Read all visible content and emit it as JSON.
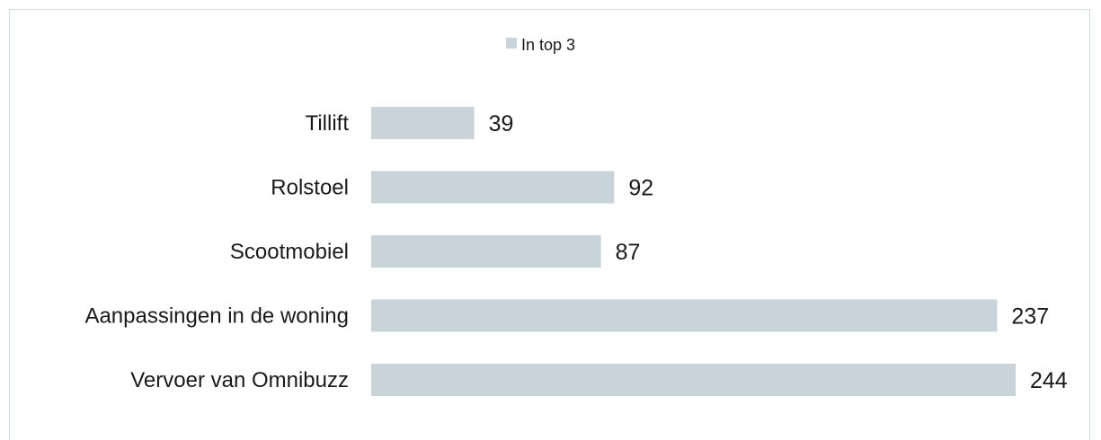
{
  "chart_data": {
    "type": "bar",
    "orientation": "horizontal",
    "categories": [
      "Tillift",
      "Rolstoel",
      "Scootmobiel",
      "Aanpassingen in de woning",
      "Vervoer van Omnibuzz"
    ],
    "series": [
      {
        "name": "In top 3",
        "values": [
          39,
          92,
          87,
          237,
          244
        ],
        "color": "#c8d4da"
      }
    ],
    "xlim": [
      0,
      244
    ],
    "grid": false,
    "legend": "top-center",
    "data_labels": true
  }
}
